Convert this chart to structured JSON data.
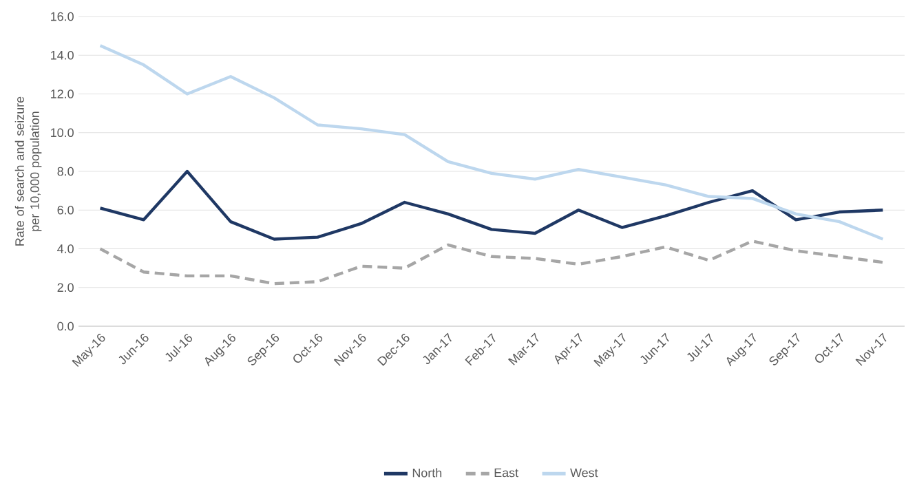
{
  "chart_data": {
    "type": "line",
    "ylabel": "Rate of search and seizure per 10,000 population",
    "categories": [
      "May-16",
      "Jun-16",
      "Jul-16",
      "Aug-16",
      "Sep-16",
      "Oct-16",
      "Nov-16",
      "Dec-16",
      "Jan-17",
      "Feb-17",
      "Mar-17",
      "Apr-17",
      "May-17",
      "Jun-17",
      "Jul-17",
      "Aug-17",
      "Sep-17",
      "Oct-17",
      "Nov-17"
    ],
    "series": [
      {
        "name": "North",
        "color": "#1f3864",
        "line_style": "solid",
        "values": [
          6.1,
          5.5,
          8.0,
          5.4,
          4.5,
          4.6,
          5.3,
          6.4,
          5.8,
          5.0,
          4.8,
          6.0,
          5.1,
          5.7,
          6.4,
          7.0,
          5.5,
          5.9,
          6.0
        ]
      },
      {
        "name": "East",
        "color": "#a6a6a6",
        "line_style": "dashed",
        "values": [
          4.0,
          2.8,
          2.6,
          2.6,
          2.2,
          2.3,
          3.1,
          3.0,
          4.2,
          3.6,
          3.5,
          3.2,
          3.6,
          4.1,
          3.4,
          4.4,
          3.9,
          3.6,
          3.3
        ]
      },
      {
        "name": "West",
        "color": "#bdd7ee",
        "line_style": "solid",
        "values": [
          14.5,
          13.5,
          12.0,
          12.9,
          11.8,
          10.4,
          10.2,
          9.9,
          8.5,
          7.9,
          7.6,
          8.1,
          7.7,
          7.3,
          6.7,
          6.6,
          5.8,
          5.4,
          4.5
        ]
      }
    ],
    "ylim": [
      0,
      16
    ],
    "yticks": [
      {
        "value": 0,
        "label": "0.0"
      },
      {
        "value": 2,
        "label": "2.0"
      },
      {
        "value": 4,
        "label": "4.0"
      },
      {
        "value": 6,
        "label": "6.0"
      },
      {
        "value": 8,
        "label": "8.0"
      },
      {
        "value": 10,
        "label": "10.0"
      },
      {
        "value": 12,
        "label": "12.0"
      },
      {
        "value": 14,
        "label": "14.0"
      },
      {
        "value": 16,
        "label": "16.0"
      }
    ],
    "grid": "y",
    "legend": "bottom",
    "marker": "none"
  }
}
